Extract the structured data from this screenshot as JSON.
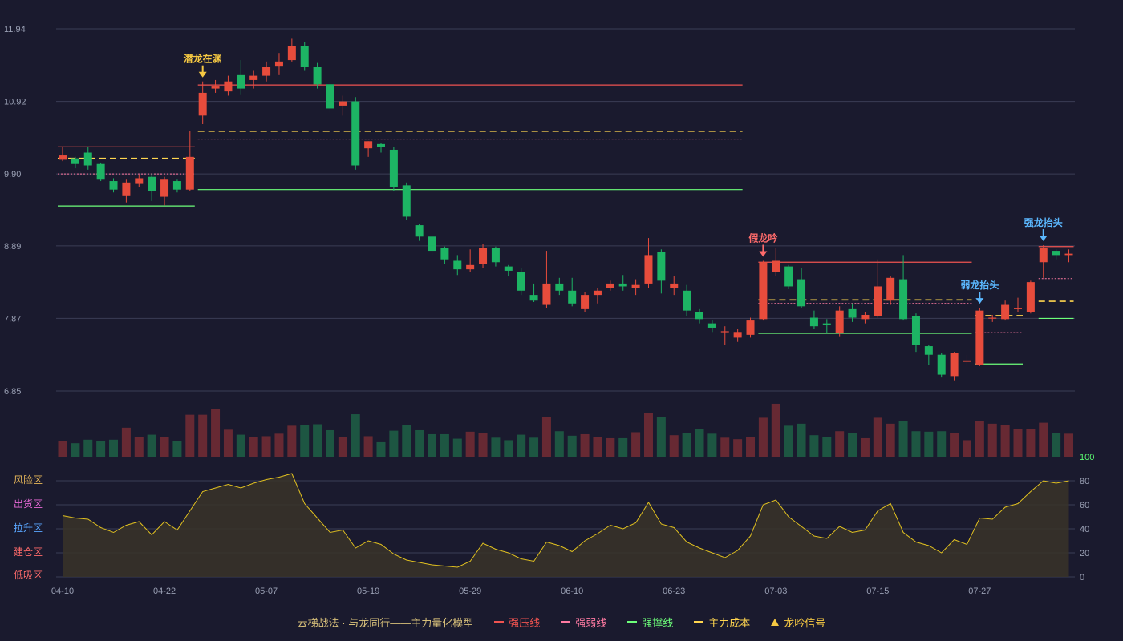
{
  "chart_data": {
    "type": "candlestick",
    "title": "云梯战法 · 与龙同行——主力量化模型",
    "colors": {
      "background": "#1a1a2e",
      "up": "#e74c3c",
      "down": "#1db464",
      "grid": "#3a3d55",
      "axis_text": "#9aa0b4",
      "strong_resist": "#ef5350",
      "strong_weak": "#ff7aa2",
      "strong_support": "#6dff7a",
      "main_cost": "#ffd54f",
      "signal_gold": "#f5c842",
      "signal_red": "#ff6b6b",
      "signal_blue": "#5bb8ff",
      "risk_line": "#e0c020"
    },
    "price_axis": {
      "ticks": [
        "11.94",
        "10.92",
        "9.90",
        "8.89",
        "7.87",
        "6.85"
      ],
      "ylim": [
        6.85,
        11.94
      ]
    },
    "date_labels": [
      {
        "i": 0,
        "label": "04-10"
      },
      {
        "i": 8,
        "label": "04-22"
      },
      {
        "i": 16,
        "label": "05-07"
      },
      {
        "i": 24,
        "label": "05-19"
      },
      {
        "i": 32,
        "label": "05-29"
      },
      {
        "i": 40,
        "label": "06-10"
      },
      {
        "i": 48,
        "label": "06-23"
      },
      {
        "i": 56,
        "label": "07-03"
      },
      {
        "i": 64,
        "label": "07-15"
      },
      {
        "i": 72,
        "label": "07-27"
      }
    ],
    "candles": [
      [
        10.1,
        10.16,
        10.28,
        10.08
      ],
      [
        10.12,
        10.04,
        10.14,
        9.98
      ],
      [
        10.2,
        10.02,
        10.28,
        9.96
      ],
      [
        10.04,
        9.82,
        10.06,
        9.8
      ],
      [
        9.8,
        9.68,
        9.84,
        9.64
      ],
      [
        9.6,
        9.78,
        9.82,
        9.5
      ],
      [
        9.76,
        9.84,
        9.88,
        9.72
      ],
      [
        9.86,
        9.66,
        9.9,
        9.52
      ],
      [
        9.58,
        9.82,
        9.86,
        9.46
      ],
      [
        9.8,
        9.68,
        9.82,
        9.64
      ],
      [
        9.68,
        10.14,
        10.5,
        9.66
      ],
      [
        10.72,
        11.04,
        11.2,
        10.6
      ],
      [
        11.1,
        11.14,
        11.22,
        11.04
      ],
      [
        11.06,
        11.2,
        11.28,
        11.0
      ],
      [
        11.3,
        11.1,
        11.5,
        11.02
      ],
      [
        11.22,
        11.28,
        11.36,
        11.1
      ],
      [
        11.28,
        11.4,
        11.48,
        11.2
      ],
      [
        11.42,
        11.48,
        11.6,
        11.3
      ],
      [
        11.5,
        11.7,
        11.8,
        11.48
      ],
      [
        11.7,
        11.4,
        11.76,
        11.36
      ],
      [
        11.4,
        11.16,
        11.46,
        11.1
      ],
      [
        11.16,
        10.82,
        11.2,
        10.76
      ],
      [
        10.86,
        10.92,
        11.0,
        10.72
      ],
      [
        10.92,
        10.02,
        10.98,
        9.96
      ],
      [
        10.26,
        10.36,
        10.36,
        10.14
      ],
      [
        10.32,
        10.28,
        10.34,
        10.2
      ],
      [
        10.24,
        9.72,
        10.28,
        9.66
      ],
      [
        9.74,
        9.3,
        9.78,
        9.26
      ],
      [
        9.18,
        9.02,
        9.2,
        8.96
      ],
      [
        9.02,
        8.82,
        9.04,
        8.76
      ],
      [
        8.86,
        8.7,
        8.88,
        8.64
      ],
      [
        8.68,
        8.56,
        8.76,
        8.48
      ],
      [
        8.56,
        8.62,
        8.84,
        8.52
      ],
      [
        8.64,
        8.86,
        8.92,
        8.58
      ],
      [
        8.86,
        8.66,
        8.88,
        8.6
      ],
      [
        8.6,
        8.54,
        8.62,
        8.46
      ],
      [
        8.52,
        8.26,
        8.58,
        8.2
      ],
      [
        8.2,
        8.12,
        8.36,
        8.1
      ],
      [
        8.06,
        8.36,
        8.82,
        8.02
      ],
      [
        8.36,
        8.26,
        8.44,
        8.2
      ],
      [
        8.26,
        8.08,
        8.44,
        8.04
      ],
      [
        8.0,
        8.2,
        8.24,
        7.96
      ],
      [
        8.2,
        8.26,
        8.3,
        8.08
      ],
      [
        8.3,
        8.36,
        8.4,
        8.26
      ],
      [
        8.36,
        8.32,
        8.48,
        8.26
      ],
      [
        8.3,
        8.34,
        8.42,
        8.2
      ],
      [
        8.36,
        8.76,
        9.0,
        8.3
      ],
      [
        8.8,
        8.4,
        8.84,
        8.22
      ],
      [
        8.3,
        8.36,
        8.46,
        8.2
      ],
      [
        8.26,
        7.98,
        8.34,
        7.9
      ],
      [
        7.96,
        7.86,
        8.0,
        7.8
      ],
      [
        7.8,
        7.74,
        7.84,
        7.68
      ],
      [
        7.68,
        7.69,
        7.76,
        7.5
      ],
      [
        7.6,
        7.68,
        7.72,
        7.54
      ],
      [
        7.64,
        7.84,
        7.88,
        7.6
      ],
      [
        7.86,
        8.66,
        8.68,
        7.84
      ],
      [
        8.52,
        8.68,
        8.86,
        8.46
      ],
      [
        8.6,
        8.32,
        8.62,
        8.28
      ],
      [
        8.42,
        8.04,
        8.58,
        8.02
      ],
      [
        7.88,
        7.76,
        7.98,
        7.72
      ],
      [
        7.8,
        7.78,
        7.86,
        7.66
      ],
      [
        7.66,
        7.98,
        8.04,
        7.62
      ],
      [
        8.0,
        7.88,
        8.08,
        7.82
      ],
      [
        7.86,
        7.92,
        7.96,
        7.8
      ],
      [
        7.9,
        8.32,
        8.7,
        7.88
      ],
      [
        8.12,
        8.44,
        8.46,
        8.06
      ],
      [
        8.42,
        7.86,
        8.76,
        7.84
      ],
      [
        7.9,
        7.5,
        7.94,
        7.4
      ],
      [
        7.48,
        7.36,
        7.5,
        7.22
      ],
      [
        7.36,
        7.08,
        7.38,
        7.04
      ],
      [
        7.06,
        7.38,
        7.4,
        7.0
      ],
      [
        7.26,
        7.28,
        7.36,
        7.2
      ],
      [
        7.22,
        7.98,
        8.02,
        7.2
      ],
      [
        7.88,
        7.88,
        7.92,
        7.82
      ],
      [
        7.86,
        8.06,
        8.12,
        7.84
      ],
      [
        8.0,
        8.02,
        8.16,
        7.96
      ],
      [
        7.96,
        8.38,
        8.4,
        7.94
      ],
      [
        8.66,
        8.86,
        8.9,
        8.44
      ],
      [
        8.82,
        8.76,
        8.84,
        8.7
      ],
      [
        8.76,
        8.78,
        8.84,
        8.66
      ]
    ],
    "volumes": [
      0.32,
      0.27,
      0.34,
      0.31,
      0.34,
      0.58,
      0.39,
      0.44,
      0.39,
      0.31,
      0.84,
      0.84,
      0.95,
      0.54,
      0.44,
      0.39,
      0.41,
      0.46,
      0.62,
      0.63,
      0.65,
      0.53,
      0.39,
      0.85,
      0.41,
      0.29,
      0.52,
      0.64,
      0.53,
      0.45,
      0.45,
      0.36,
      0.5,
      0.47,
      0.38,
      0.33,
      0.44,
      0.38,
      0.79,
      0.51,
      0.42,
      0.45,
      0.39,
      0.37,
      0.37,
      0.49,
      0.88,
      0.79,
      0.43,
      0.48,
      0.56,
      0.46,
      0.38,
      0.35,
      0.39,
      0.78,
      1.06,
      0.62,
      0.66,
      0.43,
      0.4,
      0.51,
      0.47,
      0.37,
      0.78,
      0.66,
      0.72,
      0.51,
      0.5,
      0.51,
      0.48,
      0.33,
      0.71,
      0.66,
      0.64,
      0.55,
      0.56,
      0.68,
      0.48,
      0.46
    ],
    "risk_values": [
      51,
      49,
      48,
      41,
      37,
      43,
      46,
      35,
      46,
      39,
      55,
      71,
      74,
      77,
      74,
      78,
      81,
      83,
      86,
      61,
      49,
      37,
      39,
      24,
      30,
      27,
      19,
      14,
      12,
      10,
      9,
      8,
      13,
      28,
      23,
      20,
      15,
      13,
      29,
      26,
      21,
      30,
      36,
      43,
      40,
      45,
      62,
      44,
      41,
      29,
      24,
      20,
      16,
      22,
      34,
      60,
      64,
      50,
      42,
      34,
      32,
      42,
      37,
      39,
      55,
      61,
      37,
      29,
      26,
      20,
      31,
      27,
      49,
      48,
      58,
      61,
      71,
      80,
      78,
      80
    ],
    "risk_axis": {
      "ticks": [
        "100",
        "80",
        "60",
        "40",
        "20",
        "0"
      ],
      "ylim": [
        0,
        100
      ]
    },
    "zones": [
      {
        "label": "风险区",
        "value": 80,
        "color": "#e8b85a"
      },
      {
        "label": "出货区",
        "value": 60,
        "color": "#e96ad8"
      },
      {
        "label": "拉升区",
        "value": 40,
        "color": "#5aa6ff"
      },
      {
        "label": "建仓区",
        "value": 20,
        "color": "#ff6b6b"
      },
      {
        "label": "低吸区",
        "value": 0,
        "color": "#ff6b6b"
      }
    ],
    "levels": [
      {
        "from": 0,
        "to": 10,
        "resist": 10.28,
        "weak": 9.9,
        "cost": 10.12,
        "support": 9.45
      },
      {
        "from": 11,
        "to": 53,
        "resist": 11.15,
        "weak": 10.39,
        "cost": 10.5,
        "support": 9.68
      },
      {
        "from": 55,
        "to": 71,
        "resist": 8.66,
        "weak": 8.08,
        "cost": 8.13,
        "support": 7.66
      },
      {
        "from": 72,
        "to": 75,
        "resist": null,
        "weak": 7.67,
        "cost": 7.91,
        "support": 7.23
      },
      {
        "from": 77,
        "to": 79,
        "resist": 8.88,
        "weak": 8.43,
        "cost": 8.11,
        "support": 7.87
      }
    ],
    "signals": [
      {
        "i": 11,
        "label": "潜龙在渊",
        "color": "gold"
      },
      {
        "i": 55,
        "label": "假龙吟",
        "color": "red"
      },
      {
        "i": 72,
        "label": "弱龙抬头",
        "color": "blue"
      },
      {
        "i": 77,
        "label": "强龙抬头",
        "color": "blue"
      }
    ],
    "legend": [
      {
        "label": "强压线",
        "swatch": "strong"
      },
      {
        "label": "强弱线",
        "swatch": "weak"
      },
      {
        "label": "强撑线",
        "swatch": "support"
      },
      {
        "label": "主力成本",
        "swatch": "cost"
      },
      {
        "label": "龙吟信号",
        "swatch": "tri"
      }
    ]
  }
}
